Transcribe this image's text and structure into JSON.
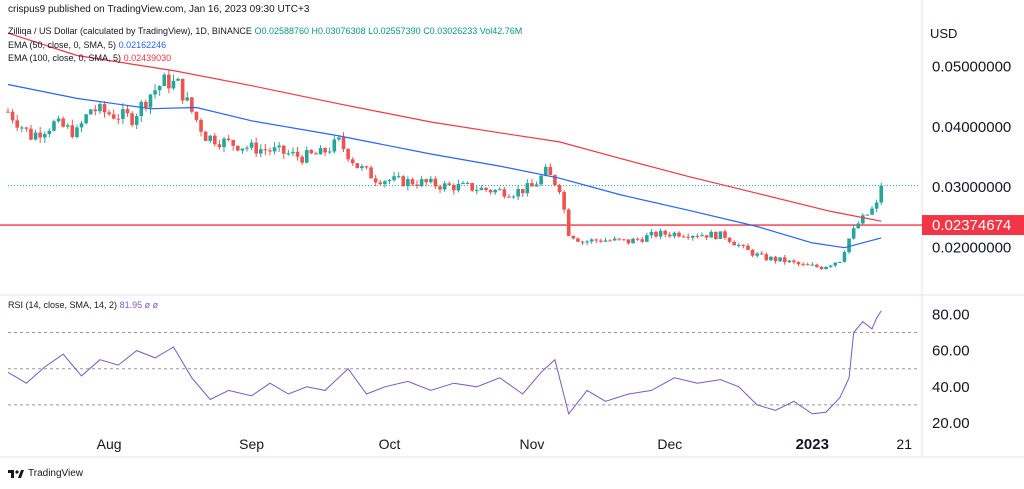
{
  "publisher": "crispus9 published on TradingView.com, Jan 16, 2023 09:30 UTC+3",
  "header": {
    "symbol": "Zilliqa / US Dollar (calculated by TradingView), 1D, BINANCE",
    "open": "O0.02588760",
    "high": "H0.03076308",
    "low": "L0.02557390",
    "close": "C0.03026233",
    "volume": "Vol42.76M",
    "ema50_label": "EMA (50, close, 0, SMA, 5)",
    "ema50_value": "0.02162246",
    "ema100_label": "EMA (100, close, 0, SMA, 5)",
    "ema100_value": "0.02439030"
  },
  "currency": "USD",
  "rsi_header": {
    "label": "RSI (14, close, SMA, 14, 2)",
    "value": "81.95",
    "na1": "ø",
    "na2": "ø"
  },
  "brand": "TradingView",
  "colors": {
    "up": "#26a69a",
    "down": "#ef5350",
    "ema50": "#2962ff",
    "ema100": "#f23645",
    "rsi": "#7e57c2",
    "level_line": "#f23645",
    "badge": "#f23645"
  },
  "chart_data": [
    {
      "type": "candlestick",
      "title": "Zilliqa / US Dollar (calculated by TradingView), 1D, BINANCE",
      "ylim": [
        0.013,
        0.058
      ],
      "y_ticks": [
        "0.05000000",
        "0.04000000",
        "0.03000000",
        "0.02000000"
      ],
      "y_tick_values": [
        0.05,
        0.04,
        0.03,
        0.02
      ],
      "x_ticks": [
        "Aug",
        "Sep",
        "Oct",
        "Nov",
        "Dec",
        "2023",
        "21"
      ],
      "x_tick_dates": [
        "2022-08-01",
        "2022-09-01",
        "2022-10-01",
        "2022-11-01",
        "2022-12-01",
        "2023-01-01",
        "2023-01-21"
      ],
      "x_range": [
        "2022-07-10",
        "2023-01-24"
      ],
      "horizontal_level": {
        "label": "0.02374674",
        "value": 0.02374674
      },
      "last_close": 0.03026233,
      "close_series": {
        "name": "Close",
        "points": [
          [
            "2022-07-10",
            0.0425
          ],
          [
            "2022-07-15",
            0.0385
          ],
          [
            "2022-07-20",
            0.0405
          ],
          [
            "2022-07-25",
            0.039
          ],
          [
            "2022-07-28",
            0.043
          ],
          [
            "2022-08-02",
            0.042
          ],
          [
            "2022-08-06",
            0.0415
          ],
          [
            "2022-08-10",
            0.0455
          ],
          [
            "2022-08-13",
            0.0475
          ],
          [
            "2022-08-16",
            0.047
          ],
          [
            "2022-08-19",
            0.0425
          ],
          [
            "2022-08-22",
            0.0385
          ],
          [
            "2022-08-26",
            0.0375
          ],
          [
            "2022-09-01",
            0.0365
          ],
          [
            "2022-09-06",
            0.036
          ],
          [
            "2022-09-12",
            0.035
          ],
          [
            "2022-09-16",
            0.0355
          ],
          [
            "2022-09-20",
            0.0375
          ],
          [
            "2022-09-24",
            0.0335
          ],
          [
            "2022-09-28",
            0.0315
          ],
          [
            "2022-10-03",
            0.031
          ],
          [
            "2022-10-08",
            0.0308
          ],
          [
            "2022-10-13",
            0.0302
          ],
          [
            "2022-10-18",
            0.03
          ],
          [
            "2022-10-23",
            0.0295
          ],
          [
            "2022-10-28",
            0.0292
          ],
          [
            "2022-11-01",
            0.03
          ],
          [
            "2022-11-04",
            0.0325
          ],
          [
            "2022-11-07",
            0.03
          ],
          [
            "2022-11-09",
            0.0225
          ],
          [
            "2022-11-12",
            0.021
          ],
          [
            "2022-11-16",
            0.0213
          ],
          [
            "2022-11-22",
            0.021
          ],
          [
            "2022-11-28",
            0.0222
          ],
          [
            "2022-12-03",
            0.0224
          ],
          [
            "2022-12-08",
            0.0222
          ],
          [
            "2022-12-13",
            0.022
          ],
          [
            "2022-12-17",
            0.0198
          ],
          [
            "2022-12-21",
            0.0184
          ],
          [
            "2022-12-26",
            0.0178
          ],
          [
            "2022-12-30",
            0.017
          ],
          [
            "2023-01-03",
            0.0168
          ],
          [
            "2023-01-07",
            0.018
          ],
          [
            "2023-01-09",
            0.0215
          ],
          [
            "2023-01-11",
            0.024
          ],
          [
            "2023-01-13",
            0.0255
          ],
          [
            "2023-01-15",
            0.027
          ],
          [
            "2023-01-16",
            0.03026233
          ]
        ]
      },
      "series": [
        {
          "name": "EMA (50, close, 0, SMA, 5)",
          "color": "#2962ff",
          "points": [
            [
              "2022-07-10",
              0.047
            ],
            [
              "2022-07-25",
              0.0447
            ],
            [
              "2022-08-10",
              0.043
            ],
            [
              "2022-08-20",
              0.0432
            ],
            [
              "2022-09-01",
              0.041
            ],
            [
              "2022-09-20",
              0.0385
            ],
            [
              "2022-10-10",
              0.0355
            ],
            [
              "2022-10-25",
              0.0335
            ],
            [
              "2022-11-07",
              0.0315
            ],
            [
              "2022-11-20",
              0.0288
            ],
            [
              "2022-12-05",
              0.0262
            ],
            [
              "2022-12-20",
              0.0235
            ],
            [
              "2023-01-01",
              0.0208
            ],
            [
              "2023-01-08",
              0.02
            ],
            [
              "2023-01-16",
              0.02162246
            ]
          ]
        },
        {
          "name": "EMA (100, close, 0, SMA, 5)",
          "color": "#f23645",
          "points": [
            [
              "2022-07-10",
              0.0555
            ],
            [
              "2022-07-25",
              0.0518
            ],
            [
              "2022-08-15",
              0.0493
            ],
            [
              "2022-09-01",
              0.0468
            ],
            [
              "2022-09-20",
              0.0438
            ],
            [
              "2022-10-10",
              0.0408
            ],
            [
              "2022-10-25",
              0.039
            ],
            [
              "2022-11-07",
              0.0375
            ],
            [
              "2022-11-20",
              0.0348
            ],
            [
              "2022-12-05",
              0.0318
            ],
            [
              "2022-12-20",
              0.029
            ],
            [
              "2023-01-05",
              0.026
            ],
            [
              "2023-01-16",
              0.0243903
            ]
          ]
        }
      ]
    },
    {
      "type": "line",
      "title": "RSI (14, close, SMA, 14, 2)",
      "ylim": [
        15,
        88
      ],
      "y_ticks": [
        "80.00",
        "60.00",
        "40.00",
        "20.00"
      ],
      "y_tick_values": [
        80,
        60,
        40,
        20
      ],
      "levels": [
        70,
        50,
        30
      ],
      "series": [
        {
          "name": "RSI (14, close, SMA, 14, 2)",
          "color": "#7e57c2",
          "points": [
            [
              "2022-07-10",
              48
            ],
            [
              "2022-07-14",
              42
            ],
            [
              "2022-07-18",
              51
            ],
            [
              "2022-07-22",
              58
            ],
            [
              "2022-07-26",
              46
            ],
            [
              "2022-07-30",
              55
            ],
            [
              "2022-08-03",
              52
            ],
            [
              "2022-08-07",
              60
            ],
            [
              "2022-08-11",
              56
            ],
            [
              "2022-08-15",
              62
            ],
            [
              "2022-08-19",
              45
            ],
            [
              "2022-08-23",
              33
            ],
            [
              "2022-08-27",
              38
            ],
            [
              "2022-09-01",
              35
            ],
            [
              "2022-09-05",
              42
            ],
            [
              "2022-09-09",
              36
            ],
            [
              "2022-09-13",
              40
            ],
            [
              "2022-09-17",
              38
            ],
            [
              "2022-09-22",
              50
            ],
            [
              "2022-09-26",
              36
            ],
            [
              "2022-09-30",
              40
            ],
            [
              "2022-10-05",
              43
            ],
            [
              "2022-10-10",
              38
            ],
            [
              "2022-10-15",
              42
            ],
            [
              "2022-10-20",
              40
            ],
            [
              "2022-10-25",
              45
            ],
            [
              "2022-10-30",
              36
            ],
            [
              "2022-11-03",
              48
            ],
            [
              "2022-11-06",
              55
            ],
            [
              "2022-11-09",
              25
            ],
            [
              "2022-11-13",
              38
            ],
            [
              "2022-11-17",
              32
            ],
            [
              "2022-11-22",
              36
            ],
            [
              "2022-11-27",
              38
            ],
            [
              "2022-12-02",
              45
            ],
            [
              "2022-12-07",
              42
            ],
            [
              "2022-12-12",
              44
            ],
            [
              "2022-12-16",
              40
            ],
            [
              "2022-12-20",
              30
            ],
            [
              "2022-12-24",
              27
            ],
            [
              "2022-12-28",
              32
            ],
            [
              "2023-01-01",
              25
            ],
            [
              "2023-01-04",
              26
            ],
            [
              "2023-01-07",
              34
            ],
            [
              "2023-01-09",
              45
            ],
            [
              "2023-01-10",
              70
            ],
            [
              "2023-01-12",
              76
            ],
            [
              "2023-01-14",
              72
            ],
            [
              "2023-01-15",
              78
            ],
            [
              "2023-01-16",
              81.95
            ]
          ]
        }
      ]
    }
  ]
}
